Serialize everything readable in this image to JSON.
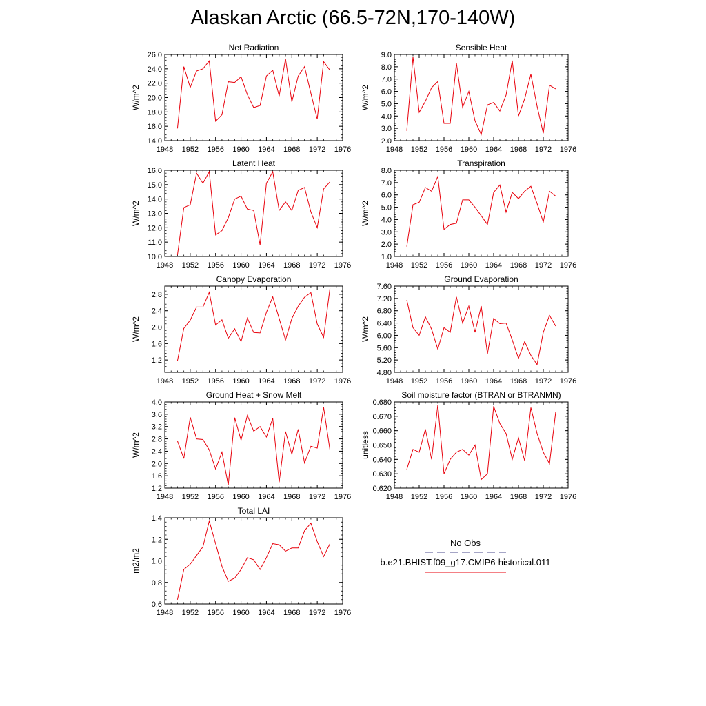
{
  "title": "Alaskan Arctic (66.5-72N,170-140W)",
  "colors": {
    "model": "#e8000b",
    "obs": "#4b4b8c",
    "axis": "#000000"
  },
  "legend": {
    "obs_label": "No Obs",
    "model_label": "b.e21.BHIST.f09_g17.CMIP6-historical.011"
  },
  "chart_data": [
    {
      "type": "line",
      "title": "Net Radiation",
      "ylabel": "W/m^2",
      "xlim": [
        1948,
        1976
      ],
      "ylim": [
        14.0,
        26.0
      ],
      "xticks": [
        1948,
        1952,
        1956,
        1960,
        1964,
        1968,
        1972,
        1976
      ],
      "yticks": [
        "14.0",
        "16.0",
        "18.0",
        "20.0",
        "22.0",
        "24.0",
        "26.0"
      ],
      "x": [
        1950,
        1951,
        1952,
        1953,
        1954,
        1955,
        1956,
        1957,
        1958,
        1959,
        1960,
        1961,
        1962,
        1963,
        1964,
        1965,
        1966,
        1967,
        1968,
        1969,
        1970,
        1971,
        1972,
        1973,
        1974
      ],
      "series": [
        {
          "values": [
            15.7,
            24.3,
            21.4,
            23.7,
            24.0,
            25.1,
            16.7,
            17.6,
            22.2,
            22.1,
            22.9,
            20.4,
            18.6,
            18.9,
            23.0,
            23.8,
            20.2,
            25.4,
            19.4,
            23.0,
            24.3,
            20.6,
            17.0,
            25.0,
            23.8
          ]
        }
      ]
    },
    {
      "type": "line",
      "title": "Sensible Heat",
      "ylabel": "W/m^2",
      "xlim": [
        1948,
        1976
      ],
      "ylim": [
        2.0,
        9.0
      ],
      "xticks": [
        1948,
        1952,
        1956,
        1960,
        1964,
        1968,
        1972,
        1976
      ],
      "yticks": [
        "2.0",
        "3.0",
        "4.0",
        "5.0",
        "6.0",
        "7.0",
        "8.0",
        "9.0"
      ],
      "x": [
        1950,
        1951,
        1952,
        1953,
        1954,
        1955,
        1956,
        1957,
        1958,
        1959,
        1960,
        1961,
        1962,
        1963,
        1964,
        1965,
        1966,
        1967,
        1968,
        1969,
        1970,
        1971,
        1972,
        1973,
        1974
      ],
      "series": [
        {
          "values": [
            2.8,
            8.8,
            4.3,
            5.2,
            6.3,
            6.8,
            3.4,
            3.4,
            8.3,
            4.7,
            6.0,
            3.6,
            2.5,
            4.9,
            5.1,
            4.4,
            5.7,
            8.5,
            4.0,
            5.4,
            7.4,
            4.8,
            2.6,
            6.5,
            6.2
          ]
        }
      ]
    },
    {
      "type": "line",
      "title": "Latent Heat",
      "ylabel": "W/m^2",
      "xlim": [
        1948,
        1976
      ],
      "ylim": [
        10.0,
        16.0
      ],
      "xticks": [
        1948,
        1952,
        1956,
        1960,
        1964,
        1968,
        1972,
        1976
      ],
      "yticks": [
        "10.0",
        "11.0",
        "12.0",
        "13.0",
        "14.0",
        "15.0",
        "16.0"
      ],
      "x": [
        1950,
        1951,
        1952,
        1953,
        1954,
        1955,
        1956,
        1957,
        1958,
        1959,
        1960,
        1961,
        1962,
        1963,
        1964,
        1965,
        1966,
        1967,
        1968,
        1969,
        1970,
        1971,
        1972,
        1973,
        1974
      ],
      "series": [
        {
          "values": [
            10.1,
            13.4,
            13.6,
            15.8,
            15.1,
            15.9,
            11.5,
            11.8,
            12.7,
            14.0,
            14.2,
            13.3,
            13.2,
            10.8,
            15.1,
            15.9,
            13.2,
            13.8,
            13.2,
            14.6,
            14.8,
            13.1,
            12.0,
            14.7,
            15.2
          ]
        }
      ]
    },
    {
      "type": "line",
      "title": "Transpiration",
      "ylabel": "W/m^2",
      "xlim": [
        1948,
        1976
      ],
      "ylim": [
        1.0,
        8.0
      ],
      "xticks": [
        1948,
        1952,
        1956,
        1960,
        1964,
        1968,
        1972,
        1976
      ],
      "yticks": [
        "1.0",
        "2.0",
        "3.0",
        "4.0",
        "5.0",
        "6.0",
        "7.0",
        "8.0"
      ],
      "x": [
        1950,
        1951,
        1952,
        1953,
        1954,
        1955,
        1956,
        1957,
        1958,
        1959,
        1960,
        1961,
        1962,
        1963,
        1964,
        1965,
        1966,
        1967,
        1968,
        1969,
        1970,
        1971,
        1972,
        1973,
        1974
      ],
      "series": [
        {
          "values": [
            1.8,
            5.2,
            5.4,
            6.6,
            6.3,
            7.5,
            3.2,
            3.6,
            3.7,
            5.6,
            5.6,
            5.0,
            4.3,
            3.6,
            6.2,
            6.8,
            4.6,
            6.2,
            5.7,
            6.3,
            6.7,
            5.3,
            3.8,
            6.3,
            5.9
          ]
        }
      ]
    },
    {
      "type": "line",
      "title": "Canopy Evaporation",
      "ylabel": "W/m^2",
      "xlim": [
        1948,
        1976
      ],
      "ylim": [
        0.9,
        3.0
      ],
      "xticks": [
        1948,
        1952,
        1956,
        1960,
        1964,
        1968,
        1972,
        1976
      ],
      "yticks": [
        "1.2",
        "1.6",
        "2.0",
        "2.4",
        "2.8"
      ],
      "x": [
        1950,
        1951,
        1952,
        1953,
        1954,
        1955,
        1956,
        1957,
        1958,
        1959,
        1960,
        1961,
        1962,
        1963,
        1964,
        1965,
        1966,
        1967,
        1968,
        1969,
        1970,
        1971,
        1972,
        1973,
        1974
      ],
      "series": [
        {
          "values": [
            1.18,
            1.97,
            2.17,
            2.49,
            2.49,
            2.85,
            2.05,
            2.18,
            1.73,
            1.96,
            1.65,
            2.22,
            1.87,
            1.86,
            2.36,
            2.74,
            2.21,
            1.69,
            2.21,
            2.51,
            2.73,
            2.84,
            2.08,
            1.75,
            2.95
          ]
        }
      ]
    },
    {
      "type": "line",
      "title": "Ground Evaporation",
      "ylabel": "W/m^2",
      "xlim": [
        1948,
        1976
      ],
      "ylim": [
        4.8,
        7.6
      ],
      "xticks": [
        1948,
        1952,
        1956,
        1960,
        1964,
        1968,
        1972,
        1976
      ],
      "yticks": [
        "4.80",
        "5.20",
        "5.60",
        "6.00",
        "6.40",
        "6.80",
        "7.20",
        "7.60"
      ],
      "x": [
        1950,
        1951,
        1952,
        1953,
        1954,
        1955,
        1956,
        1957,
        1958,
        1959,
        1960,
        1961,
        1962,
        1963,
        1964,
        1965,
        1966,
        1967,
        1968,
        1969,
        1970,
        1971,
        1972,
        1973,
        1974
      ],
      "series": [
        {
          "values": [
            7.15,
            6.25,
            6.0,
            6.6,
            6.2,
            5.55,
            6.25,
            6.1,
            7.25,
            6.4,
            6.95,
            6.1,
            6.95,
            5.4,
            6.55,
            6.38,
            6.4,
            5.85,
            5.25,
            5.8,
            5.35,
            5.05,
            6.1,
            6.65,
            6.3
          ]
        }
      ]
    },
    {
      "type": "line",
      "title": "Ground Heat + Snow Melt",
      "ylabel": "W/m^2",
      "xlim": [
        1948,
        1976
      ],
      "ylim": [
        1.2,
        4.0
      ],
      "xticks": [
        1948,
        1952,
        1956,
        1960,
        1964,
        1968,
        1972,
        1976
      ],
      "yticks": [
        "1.2",
        "1.6",
        "2.0",
        "2.4",
        "2.8",
        "3.2",
        "3.6",
        "4.0"
      ],
      "x": [
        1950,
        1951,
        1952,
        1953,
        1954,
        1955,
        1956,
        1957,
        1958,
        1959,
        1960,
        1961,
        1962,
        1963,
        1964,
        1965,
        1966,
        1967,
        1968,
        1969,
        1970,
        1971,
        1972,
        1973,
        1974
      ],
      "series": [
        {
          "values": [
            2.73,
            2.16,
            3.5,
            2.8,
            2.78,
            2.44,
            1.82,
            2.37,
            1.3,
            3.49,
            2.76,
            3.56,
            3.05,
            3.2,
            2.86,
            3.47,
            1.39,
            3.04,
            2.3,
            3.11,
            2.02,
            2.56,
            2.5,
            3.82,
            2.43
          ]
        }
      ]
    },
    {
      "type": "line",
      "title": "Soil moisture factor (BTRAN or BTRANMN)",
      "ylabel": "unitless",
      "xlim": [
        1948,
        1976
      ],
      "ylim": [
        0.62,
        0.68
      ],
      "xticks": [
        1948,
        1952,
        1956,
        1960,
        1964,
        1968,
        1972,
        1976
      ],
      "yticks": [
        "0.620",
        "0.630",
        "0.640",
        "0.650",
        "0.660",
        "0.670",
        "0.680"
      ],
      "x": [
        1950,
        1951,
        1952,
        1953,
        1954,
        1955,
        1956,
        1957,
        1958,
        1959,
        1960,
        1961,
        1962,
        1963,
        1964,
        1965,
        1966,
        1967,
        1968,
        1969,
        1970,
        1971,
        1972,
        1973,
        1974
      ],
      "series": [
        {
          "values": [
            0.633,
            0.647,
            0.645,
            0.661,
            0.64,
            0.678,
            0.63,
            0.64,
            0.645,
            0.647,
            0.643,
            0.65,
            0.626,
            0.63,
            0.677,
            0.665,
            0.658,
            0.64,
            0.655,
            0.639,
            0.676,
            0.658,
            0.645,
            0.637,
            0.673
          ]
        }
      ]
    },
    {
      "type": "line",
      "title": "Total LAI",
      "ylabel": "m2/m2",
      "xlim": [
        1948,
        1976
      ],
      "ylim": [
        0.6,
        1.4
      ],
      "xticks": [
        1948,
        1952,
        1956,
        1960,
        1964,
        1968,
        1972,
        1976
      ],
      "yticks": [
        "0.6",
        "0.8",
        "1.0",
        "1.2",
        "1.4"
      ],
      "x": [
        1950,
        1951,
        1952,
        1953,
        1954,
        1955,
        1956,
        1957,
        1958,
        1959,
        1960,
        1961,
        1962,
        1963,
        1964,
        1965,
        1966,
        1967,
        1968,
        1969,
        1970,
        1971,
        1972,
        1973,
        1974
      ],
      "series": [
        {
          "values": [
            0.64,
            0.92,
            0.97,
            1.05,
            1.13,
            1.37,
            1.16,
            0.95,
            0.81,
            0.84,
            0.92,
            1.03,
            1.01,
            0.92,
            1.03,
            1.16,
            1.15,
            1.09,
            1.12,
            1.12,
            1.28,
            1.35,
            1.18,
            1.04,
            1.16
          ]
        }
      ]
    }
  ]
}
